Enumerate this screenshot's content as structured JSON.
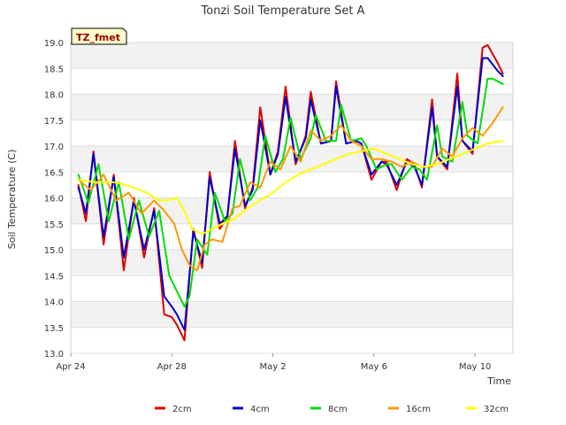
{
  "chart_data": {
    "type": "line",
    "title": "Tonzi Soil Temperature Set A",
    "xlabel": "Time",
    "ylabel": "Soil Temperature (C)",
    "annotation": "TZ_fmet",
    "xlim": [
      0,
      17.5
    ],
    "ylim": [
      13.0,
      19.0
    ],
    "yticks": [
      13.0,
      13.5,
      14.0,
      14.5,
      15.0,
      15.5,
      16.0,
      16.5,
      17.0,
      17.5,
      18.0,
      18.5,
      19.0
    ],
    "xticks": [
      {
        "label": "Apr 24",
        "x": 0
      },
      {
        "label": "Apr 28",
        "x": 4
      },
      {
        "label": "May 2",
        "x": 8
      },
      {
        "label": "May 6",
        "x": 12
      },
      {
        "label": "May 10",
        "x": 16
      }
    ],
    "x_units": "days since Apr 24",
    "grid": true,
    "legend_position": "bottom",
    "series": [
      {
        "name": "2cm",
        "color": "#dd0000",
        "x": [
          0.3,
          0.6,
          0.9,
          1.3,
          1.7,
          2.1,
          2.5,
          2.9,
          3.3,
          3.7,
          4.0,
          4.2,
          4.5,
          4.85,
          5.2,
          5.5,
          5.9,
          6.2,
          6.5,
          6.9,
          7.2,
          7.5,
          7.9,
          8.2,
          8.5,
          8.9,
          9.3,
          9.5,
          9.9,
          10.3,
          10.5,
          10.9,
          11.3,
          11.5,
          11.9,
          12.3,
          12.5,
          12.9,
          13.3,
          13.6,
          13.9,
          14.3,
          14.5,
          14.9,
          15.3,
          15.5,
          15.9,
          16.3,
          16.5,
          16.9,
          17.1
        ],
        "y": [
          16.25,
          15.55,
          16.9,
          15.1,
          16.45,
          14.6,
          16.0,
          14.85,
          15.8,
          13.75,
          13.7,
          13.55,
          13.25,
          15.4,
          14.65,
          16.5,
          15.4,
          15.65,
          17.1,
          15.8,
          16.2,
          17.75,
          16.45,
          16.9,
          18.15,
          16.65,
          17.2,
          18.05,
          17.05,
          17.1,
          18.25,
          17.05,
          17.1,
          17.05,
          16.35,
          16.7,
          16.7,
          16.15,
          16.75,
          16.65,
          16.2,
          17.9,
          16.8,
          16.55,
          18.4,
          17.1,
          16.85,
          18.9,
          18.95,
          18.6,
          18.4
        ]
      },
      {
        "name": "4cm",
        "color": "#0000cc",
        "x": [
          0.3,
          0.6,
          0.9,
          1.3,
          1.7,
          2.1,
          2.5,
          2.9,
          3.3,
          3.7,
          4.0,
          4.2,
          4.5,
          4.85,
          5.2,
          5.5,
          5.9,
          6.2,
          6.5,
          6.9,
          7.2,
          7.5,
          7.9,
          8.2,
          8.5,
          8.9,
          9.3,
          9.5,
          9.9,
          10.3,
          10.5,
          10.9,
          11.3,
          11.5,
          11.9,
          12.3,
          12.5,
          12.9,
          13.3,
          13.6,
          13.9,
          14.3,
          14.5,
          14.9,
          15.3,
          15.5,
          15.9,
          16.3,
          16.5,
          16.9,
          17.1
        ],
        "y": [
          16.2,
          15.7,
          16.85,
          15.25,
          16.4,
          14.85,
          15.95,
          15.0,
          15.75,
          14.1,
          13.9,
          13.75,
          13.45,
          15.35,
          14.75,
          16.4,
          15.5,
          15.65,
          16.95,
          15.85,
          16.15,
          17.5,
          16.45,
          16.85,
          17.95,
          16.7,
          17.15,
          17.9,
          17.05,
          17.1,
          18.15,
          17.05,
          17.1,
          17.05,
          16.45,
          16.7,
          16.65,
          16.25,
          16.7,
          16.6,
          16.25,
          17.75,
          16.8,
          16.6,
          18.15,
          17.1,
          16.9,
          18.7,
          18.7,
          18.45,
          18.35
        ]
      },
      {
        "name": "8cm",
        "color": "#00dd00",
        "x": [
          0.3,
          0.7,
          1.1,
          1.5,
          1.9,
          2.3,
          2.7,
          3.1,
          3.5,
          3.9,
          4.2,
          4.5,
          4.7,
          5.0,
          5.4,
          5.7,
          6.1,
          6.4,
          6.7,
          7.1,
          7.4,
          7.7,
          8.1,
          8.4,
          8.7,
          9.1,
          9.5,
          9.7,
          10.1,
          10.5,
          10.7,
          11.1,
          11.5,
          11.7,
          12.1,
          12.5,
          12.7,
          13.1,
          13.5,
          13.8,
          14.1,
          14.5,
          14.7,
          15.1,
          15.5,
          15.7,
          16.1,
          16.5,
          16.7,
          17.1
        ],
        "y": [
          16.45,
          15.9,
          16.65,
          15.55,
          16.3,
          15.2,
          15.95,
          15.25,
          15.75,
          14.5,
          14.2,
          13.9,
          14.1,
          15.2,
          14.9,
          16.1,
          15.55,
          15.7,
          16.75,
          15.95,
          16.2,
          17.2,
          16.5,
          16.75,
          17.55,
          16.75,
          17.15,
          17.6,
          17.1,
          17.1,
          17.8,
          17.1,
          17.15,
          17.0,
          16.55,
          16.65,
          16.65,
          16.35,
          16.6,
          16.55,
          16.35,
          17.4,
          16.8,
          16.7,
          17.85,
          17.2,
          17.05,
          18.3,
          18.3,
          18.2
        ]
      },
      {
        "name": "16cm",
        "color": "#ff9900",
        "x": [
          0.3,
          0.8,
          1.3,
          1.8,
          2.3,
          2.8,
          3.3,
          3.7,
          4.1,
          4.4,
          4.7,
          5.0,
          5.3,
          5.6,
          6.0,
          6.4,
          6.7,
          7.1,
          7.5,
          7.9,
          8.3,
          8.7,
          9.1,
          9.5,
          9.9,
          10.3,
          10.7,
          11.1,
          11.5,
          11.9,
          12.3,
          12.7,
          13.1,
          13.5,
          13.9,
          14.3,
          14.7,
          15.1,
          15.5,
          15.9,
          16.3,
          16.7,
          17.1
        ],
        "y": [
          16.35,
          16.15,
          16.45,
          15.95,
          16.1,
          15.7,
          15.95,
          15.75,
          15.5,
          15.0,
          14.7,
          14.6,
          15.1,
          15.2,
          15.15,
          15.8,
          15.85,
          16.3,
          16.2,
          16.7,
          16.55,
          17.0,
          16.7,
          17.3,
          17.1,
          17.2,
          17.4,
          17.1,
          17.0,
          16.75,
          16.75,
          16.7,
          16.6,
          16.7,
          16.6,
          16.6,
          16.95,
          16.8,
          17.15,
          17.35,
          17.2,
          17.45,
          17.75
        ]
      },
      {
        "name": "32cm",
        "color": "#ffff00",
        "x": [
          0.3,
          1.0,
          1.8,
          2.5,
          3.0,
          3.5,
          3.8,
          4.2,
          4.5,
          4.8,
          5.2,
          5.6,
          6.0,
          6.5,
          7.0,
          7.5,
          8.0,
          8.5,
          9.0,
          9.5,
          10.0,
          10.5,
          11.0,
          11.5,
          12.0,
          12.5,
          13.0,
          13.5,
          14.0,
          14.5,
          15.0,
          15.5,
          16.0,
          16.5,
          17.1
        ],
        "y": [
          16.35,
          16.3,
          16.3,
          16.2,
          16.1,
          15.95,
          15.95,
          16.0,
          15.75,
          15.4,
          15.3,
          15.4,
          15.5,
          15.6,
          15.8,
          15.95,
          16.1,
          16.3,
          16.45,
          16.55,
          16.65,
          16.75,
          16.85,
          16.9,
          16.95,
          16.85,
          16.75,
          16.65,
          16.6,
          16.65,
          16.75,
          16.85,
          16.95,
          17.05,
          17.1
        ]
      }
    ]
  }
}
